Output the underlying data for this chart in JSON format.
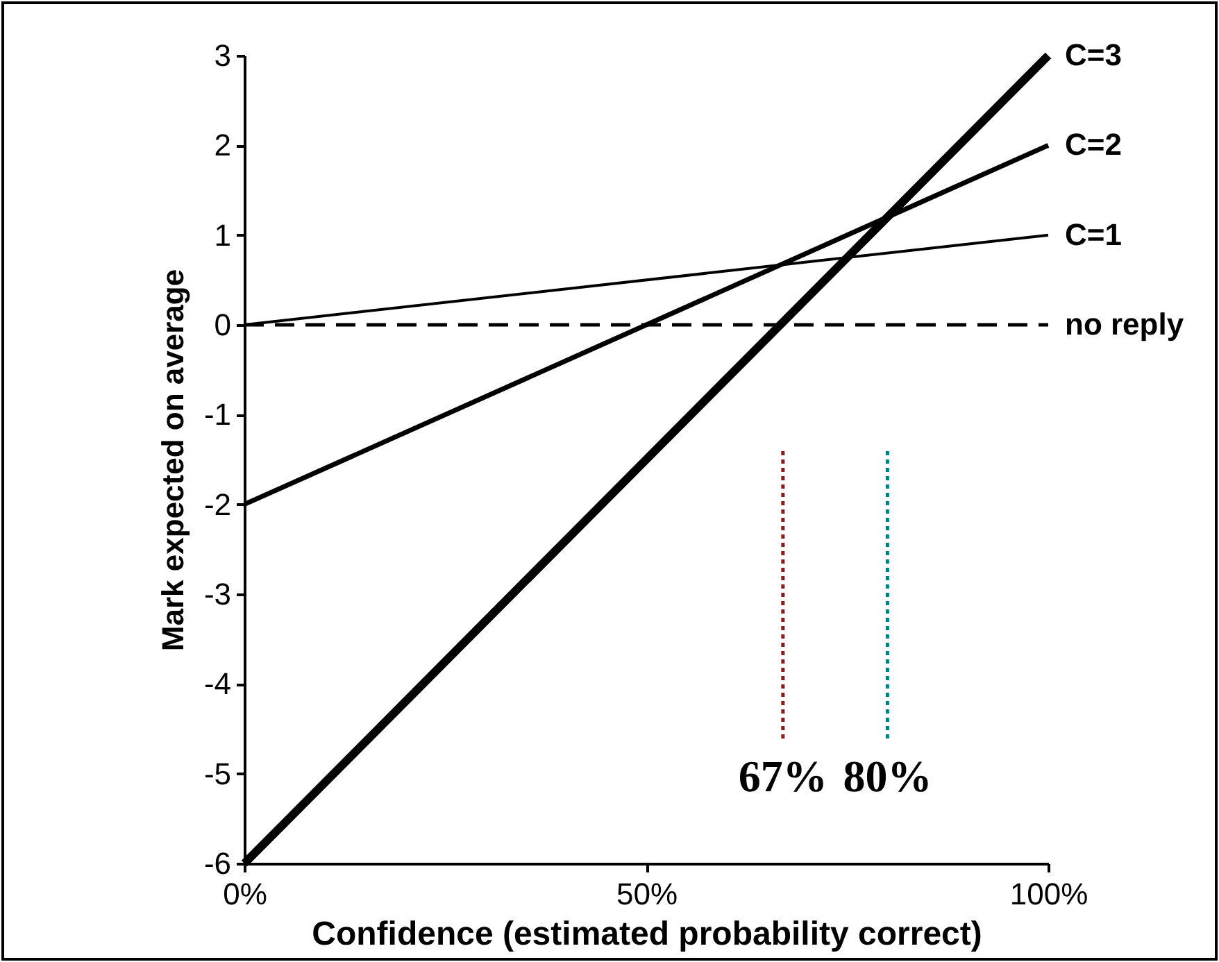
{
  "chart_data": {
    "type": "line",
    "xlabel": "Confidence (estimated probability correct)",
    "ylabel": "Mark expected on average",
    "x": [
      0,
      100
    ],
    "xlim": [
      0,
      100
    ],
    "xticks": [
      {
        "value": 0,
        "label": "0%"
      },
      {
        "value": 50,
        "label": "50%"
      },
      {
        "value": 100,
        "label": "100%"
      }
    ],
    "ylim": [
      -6,
      3
    ],
    "yticks": [
      -6,
      -5,
      -4,
      -3,
      -2,
      -1,
      0,
      1,
      2,
      3
    ],
    "grid": false,
    "legend": false,
    "marker": "none",
    "series": [
      {
        "name": "C=3",
        "color": "#000000",
        "values": [
          -6,
          3
        ]
      },
      {
        "name": "C=2",
        "color": "#000000",
        "values": [
          -2,
          2
        ]
      },
      {
        "name": "C=1",
        "color": "#000000",
        "values": [
          0,
          1
        ]
      },
      {
        "name": "no reply",
        "color": "#000000",
        "values": [
          0,
          0
        ],
        "line_style": "dashed"
      }
    ],
    "ref_lines": [
      {
        "axis": "x",
        "value": 67,
        "label": "67%",
        "color": "#8b1a1a",
        "line_style": "dotted"
      },
      {
        "axis": "x",
        "value": 80,
        "label": "80%",
        "color": "#008080",
        "line_style": "dotted"
      }
    ]
  }
}
